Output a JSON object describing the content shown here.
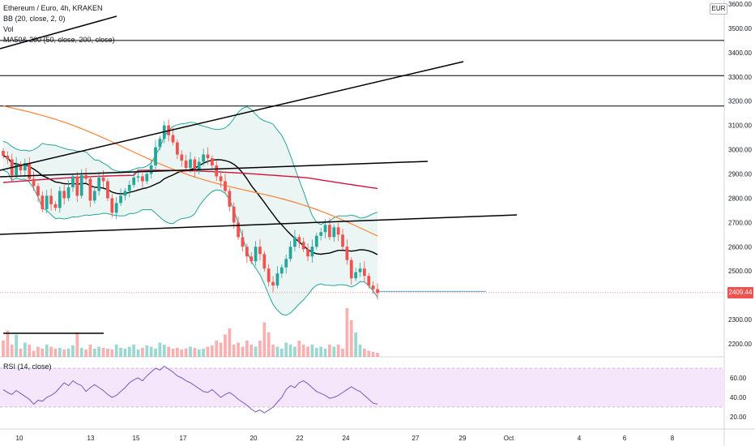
{
  "legend": {
    "symbol": "Ethereum / Euro, 4h, KRAKEN",
    "bb": "BB (20, close, 2, 0)",
    "vol": "Vol",
    "ma": "MA50& 200 (50, close, 200, close)"
  },
  "rsi_legend": "RSI (14, close)",
  "currency": "EUR",
  "last_price": "2409.44",
  "colors": {
    "up": "#26a69a",
    "down": "#ef5350",
    "bb": "#26a69a",
    "bb_fill": "#e6f3f1",
    "ma50": "#ff7f32",
    "ma200": "#d0143c",
    "rsi": "#7e57c2",
    "rsi_fill": "#f5e6fb",
    "trend": "#000000"
  },
  "chart_data": {
    "type": "candlestick",
    "price_axis": {
      "ticks": [
        2200,
        2300,
        2400,
        2500,
        2600,
        2700,
        2800,
        2900,
        3000,
        3100,
        3200,
        3300,
        3400,
        3500,
        3600
      ]
    },
    "x_labels": [
      "10",
      "13",
      "15",
      "17",
      "20",
      "22",
      "24",
      "27",
      "29",
      "Oct",
      "4",
      "6",
      "8"
    ],
    "rsi_axis": {
      "ticks": [
        20,
        40,
        60
      ],
      "band": [
        30,
        70
      ]
    },
    "last_price": 2409.44,
    "horizontal_levels": [
      3450,
      3305,
      3180
    ],
    "closes": [
      2975,
      2960,
      2895,
      2940,
      2915,
      2945,
      2880,
      2850,
      2810,
      2755,
      2810,
      2775,
      2760,
      2830,
      2800,
      2845,
      2890,
      2810,
      2895,
      2880,
      2790,
      2830,
      2885,
      2870,
      2800,
      2740,
      2780,
      2810,
      2830,
      2855,
      2885,
      2890,
      2870,
      2900,
      2935,
      3010,
      3045,
      3100,
      3060,
      3030,
      2980,
      2955,
      2925,
      2960,
      2910,
      2950,
      2980,
      2965,
      2935,
      2890,
      2870,
      2830,
      2765,
      2700,
      2640,
      2600,
      2560,
      2540,
      2600,
      2570,
      2510,
      2455,
      2440,
      2490,
      2515,
      2550,
      2600,
      2640,
      2620,
      2590,
      2560,
      2600,
      2645,
      2660,
      2690,
      2640,
      2680,
      2650,
      2600,
      2545,
      2470,
      2495,
      2510,
      2480,
      2440,
      2425,
      2409
    ],
    "volumes": [
      40,
      65,
      30,
      55,
      20,
      35,
      30,
      15,
      25,
      20,
      30,
      25,
      20,
      22,
      18,
      20,
      28,
      60,
      22,
      18,
      30,
      20,
      25,
      22,
      20,
      18,
      30,
      22,
      20,
      25,
      30,
      18,
      22,
      28,
      25,
      20,
      35,
      30,
      25,
      20,
      22,
      18,
      20,
      25,
      22,
      18,
      20,
      25,
      28,
      40,
      35,
      55,
      70,
      30,
      35,
      25,
      40,
      30,
      25,
      40,
      85,
      60,
      30,
      25,
      20,
      35,
      30,
      25,
      40,
      30,
      25,
      30,
      22,
      25,
      20,
      30,
      25,
      30,
      20,
      120,
      90,
      60,
      30,
      20,
      15,
      12,
      10
    ],
    "rsi": [
      48,
      45,
      43,
      47,
      44,
      41,
      38,
      33,
      37,
      36,
      40,
      42,
      45,
      50,
      55,
      52,
      57,
      54,
      52,
      46,
      50,
      53,
      50,
      47,
      43,
      40,
      42,
      46,
      50,
      55,
      58,
      60,
      57,
      62,
      66,
      70,
      68,
      72,
      69,
      66,
      62,
      60,
      57,
      55,
      52,
      49,
      46,
      45,
      48,
      44,
      40,
      43,
      45,
      42,
      38,
      35,
      32,
      28,
      25,
      27,
      24,
      27,
      30,
      35,
      40,
      48,
      52,
      50,
      55,
      57,
      54,
      50,
      46,
      44,
      42,
      39,
      40,
      42,
      45,
      48,
      51,
      48,
      46,
      42,
      38,
      34,
      33
    ]
  }
}
